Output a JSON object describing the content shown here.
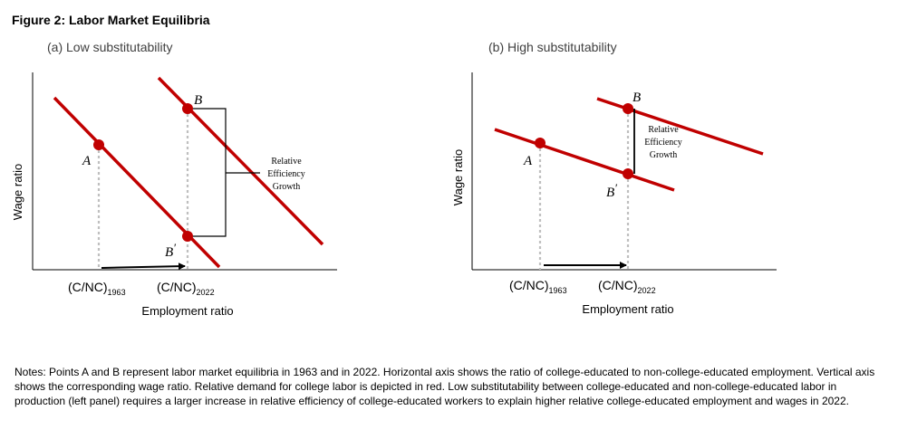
{
  "figure": {
    "title": "Figure 2: Labor Market Equilibria"
  },
  "panels": [
    {
      "subtitle": "(a) Low substitutability",
      "ylabel": "Wage ratio",
      "xlabel": "Employment ratio",
      "tick_1963": {
        "base": "(C/NC)",
        "sub": "1963"
      },
      "tick_2022": {
        "base": "(C/NC)",
        "sub": "2022"
      },
      "points": {
        "A": "A",
        "B": "B",
        "Bp_base": "B",
        "Bp_prime": "′"
      },
      "annotation": [
        "Relative",
        "Efficiency",
        "Growth"
      ]
    },
    {
      "subtitle": "(b) High substitutability",
      "ylabel": "Wage ratio",
      "xlabel": "Employment ratio",
      "tick_1963": {
        "base": "(C/NC)",
        "sub": "1963"
      },
      "tick_2022": {
        "base": "(C/NC)",
        "sub": "2022"
      },
      "points": {
        "A": "A",
        "B": "B",
        "Bp_base": "B",
        "Bp_prime": "′"
      },
      "annotation": [
        "Relative",
        "Efficiency",
        "Growth"
      ]
    }
  ],
  "colors": {
    "demand": "#c00000",
    "guide": "#bfbfbf",
    "axis": "#000000"
  },
  "notes": "Notes: Points A and B represent labor market equilibria in 1963 and in 2022. Horizontal axis shows the ratio of college-educated to non-college-educated employment. Vertical axis shows the corresponding wage ratio. Relative demand for college labor is depicted in red. Low substitutability between college-educated and non-college-educated labor in production (left panel) requires a larger increase in relative efficiency of college-educated workers to explain higher relative college-educated employment and wages in 2022."
}
